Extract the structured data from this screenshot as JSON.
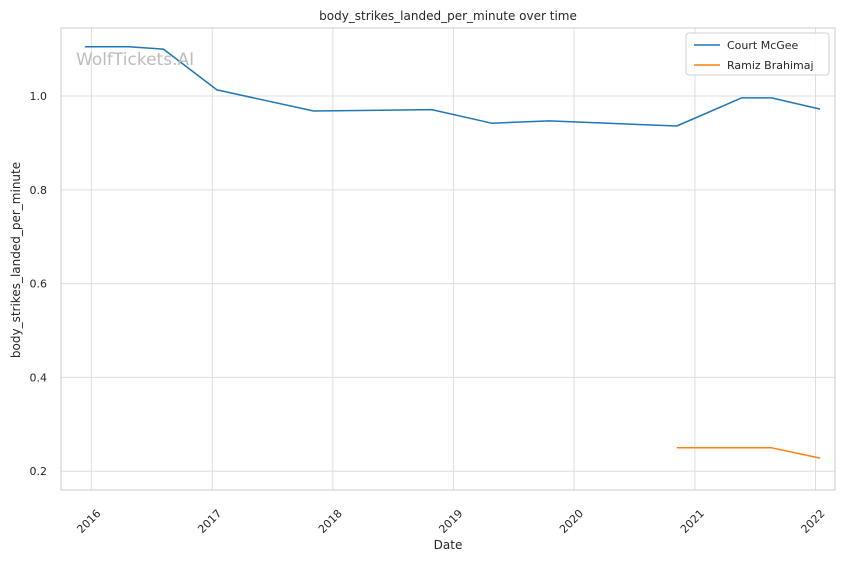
{
  "chart_data": {
    "type": "line",
    "title": "body_strikes_landed_per_minute over time",
    "xlabel": "Date",
    "ylabel": "body_strikes_landed_per_minute",
    "watermark": "WolfTickets.AI",
    "x_ticks": [
      "2016",
      "2017",
      "2018",
      "2019",
      "2020",
      "2021",
      "2022"
    ],
    "y_ticks": [
      "0.2",
      "0.4",
      "0.6",
      "0.8",
      "1.0"
    ],
    "xlim": [
      "2015-10-01",
      "2022-03-01"
    ],
    "ylim": [
      0.16,
      1.145
    ],
    "grid": true,
    "legend_position": "top-right",
    "series": [
      {
        "name": "Court McGee",
        "color": "#1f77b4",
        "points": [
          {
            "x": "2015-12-12",
            "y": 1.105
          },
          {
            "x": "2016-04-23",
            "y": 1.105
          },
          {
            "x": "2016-08-06",
            "y": 1.1
          },
          {
            "x": "2017-01-15",
            "y": 1.013
          },
          {
            "x": "2017-11-04",
            "y": 0.968
          },
          {
            "x": "2018-10-27",
            "y": 0.971
          },
          {
            "x": "2019-04-27",
            "y": 0.942
          },
          {
            "x": "2019-10-18",
            "y": 0.947
          },
          {
            "x": "2020-11-07",
            "y": 0.936
          },
          {
            "x": "2021-05-22",
            "y": 0.996
          },
          {
            "x": "2021-08-21",
            "y": 0.996
          },
          {
            "x": "2022-01-15",
            "y": 0.972
          }
        ]
      },
      {
        "name": "Ramiz Brahimaj",
        "color": "#ff7f0e",
        "points": [
          {
            "x": "2020-11-07",
            "y": 0.25
          },
          {
            "x": "2021-08-21",
            "y": 0.25
          },
          {
            "x": "2022-01-15",
            "y": 0.228
          }
        ]
      }
    ]
  }
}
